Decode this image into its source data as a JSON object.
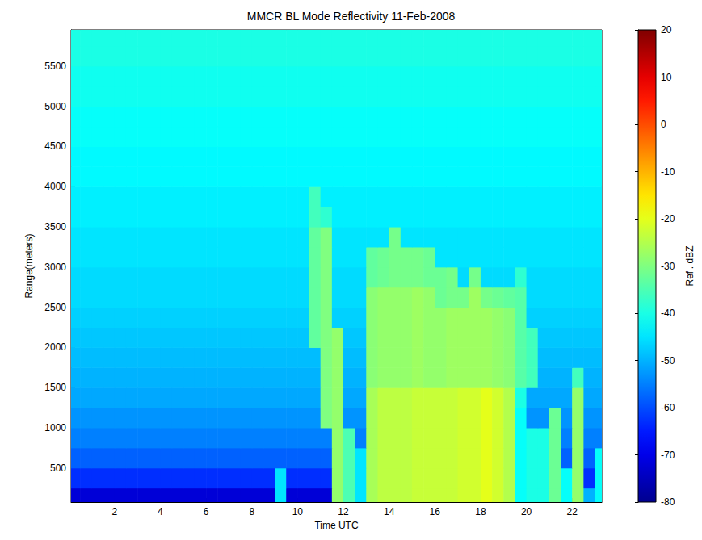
{
  "chart_data": {
    "type": "heatmap",
    "title": "MMCR BL Mode Reflectivity 11-Feb-2008",
    "xlabel": "Time UTC",
    "ylabel": "Range(meters)",
    "xlim": [
      0.1,
      23.3
    ],
    "xticks": [
      2,
      4,
      6,
      8,
      10,
      12,
      14,
      16,
      18,
      20,
      22
    ],
    "ylim": [
      75,
      5950
    ],
    "yticks": [
      500,
      1000,
      1500,
      2000,
      2500,
      3000,
      3500,
      4000,
      4500,
      5000,
      5500
    ],
    "grid": false,
    "cells": {
      "x": [
        0.25,
        0.75,
        1.25,
        1.75,
        2.25,
        2.75,
        3.25,
        3.75,
        4.25,
        4.75,
        5.25,
        5.75,
        6.25,
        6.75,
        7.25,
        7.75,
        8.25,
        8.75,
        9.25,
        9.75,
        10.25,
        10.75,
        11.25,
        11.75,
        12.25,
        12.75,
        13.25,
        13.75,
        14.25,
        14.75,
        15.25,
        15.75,
        16.25,
        16.75,
        17.25,
        17.75,
        18.25,
        18.75,
        19.25,
        19.75,
        20.25,
        20.75,
        21.25,
        21.75,
        22.25,
        22.75,
        23.25
      ],
      "y": [
        125,
        375,
        625,
        875,
        1125,
        1375,
        1625,
        1875,
        2125,
        2375,
        2625,
        2875,
        3125,
        3375,
        3625,
        3875,
        4125,
        4375,
        4625,
        4875,
        5125,
        5375,
        5625,
        5875
      ],
      "values": [
        [
          -72,
          -72,
          -72,
          -72,
          -72,
          -72,
          -72,
          -72,
          -72,
          -72,
          -72,
          -72,
          -72,
          -72,
          -72,
          -72,
          -72,
          -72,
          -45,
          -72,
          -72,
          -72,
          -72,
          -28,
          -35,
          -45,
          -26,
          -24,
          -24,
          -24,
          -23,
          -23,
          -23,
          -23,
          -22,
          -22,
          -20,
          -22,
          -25,
          -42,
          -40,
          -40,
          -32,
          -42,
          -28,
          -50,
          -42
        ],
        [
          -63,
          -63,
          -63,
          -63,
          -63,
          -63,
          -63,
          -63,
          -63,
          -63,
          -63,
          -63,
          -63,
          -63,
          -63,
          -63,
          -63,
          -63,
          -45,
          -63,
          -63,
          -63,
          -63,
          -28,
          -35,
          -45,
          -26,
          -24,
          -24,
          -24,
          -23,
          -23,
          -23,
          -23,
          -22,
          -22,
          -20,
          -22,
          -25,
          -42,
          -40,
          -40,
          -32,
          -42,
          -28,
          -63,
          -42
        ],
        [
          -58,
          -58,
          -58,
          -58,
          -58,
          -58,
          -58,
          -58,
          -58,
          -58,
          -58,
          -58,
          -58,
          -58,
          -58,
          -58,
          -58,
          -58,
          -58,
          -58,
          -58,
          -58,
          -58,
          -28,
          -35,
          -45,
          -26,
          -24,
          -24,
          -24,
          -23,
          -23,
          -23,
          -23,
          -22,
          -22,
          -20,
          -22,
          -25,
          -42,
          -40,
          -40,
          -32,
          -58,
          -28,
          -58,
          -42
        ],
        [
          -55,
          -55,
          -55,
          -55,
          -55,
          -55,
          -55,
          -55,
          -55,
          -55,
          -55,
          -55,
          -55,
          -55,
          -55,
          -55,
          -55,
          -55,
          -55,
          -55,
          -55,
          -55,
          -55,
          -28,
          -35,
          -55,
          -26,
          -24,
          -24,
          -24,
          -23,
          -23,
          -23,
          -23,
          -22,
          -22,
          -20,
          -22,
          -25,
          -42,
          -40,
          -40,
          -32,
          -55,
          -28,
          -55,
          -55
        ],
        [
          -53,
          -53,
          -53,
          -53,
          -53,
          -53,
          -53,
          -53,
          -53,
          -53,
          -53,
          -53,
          -53,
          -53,
          -53,
          -53,
          -53,
          -53,
          -53,
          -53,
          -53,
          -53,
          -30,
          -28,
          -53,
          -53,
          -26,
          -24,
          -24,
          -24,
          -23,
          -23,
          -23,
          -23,
          -22,
          -22,
          -20,
          -22,
          -25,
          -42,
          -53,
          -53,
          -32,
          -53,
          -28,
          -53,
          -53
        ],
        [
          -51,
          -51,
          -51,
          -51,
          -51,
          -51,
          -51,
          -51,
          -51,
          -51,
          -51,
          -51,
          -51,
          -51,
          -51,
          -51,
          -51,
          -51,
          -51,
          -51,
          -51,
          -51,
          -30,
          -28,
          -51,
          -51,
          -26,
          -24,
          -24,
          -24,
          -23,
          -23,
          -23,
          -23,
          -22,
          -22,
          -20,
          -22,
          -25,
          -40,
          -51,
          -51,
          -51,
          -51,
          -28,
          -51,
          -51
        ],
        [
          -50,
          -50,
          -50,
          -50,
          -50,
          -50,
          -50,
          -50,
          -50,
          -50,
          -50,
          -50,
          -50,
          -50,
          -50,
          -50,
          -50,
          -50,
          -50,
          -50,
          -50,
          -50,
          -30,
          -28,
          -50,
          -50,
          -29,
          -28,
          -28,
          -28,
          -27,
          -28,
          -28,
          -27,
          -27,
          -27,
          -27,
          -28,
          -29,
          -34,
          -36,
          -50,
          -50,
          -50,
          -36,
          -50,
          -50
        ],
        [
          -49,
          -49,
          -49,
          -49,
          -49,
          -49,
          -49,
          -49,
          -49,
          -49,
          -49,
          -49,
          -49,
          -49,
          -49,
          -49,
          -49,
          -49,
          -49,
          -49,
          -49,
          -49,
          -30,
          -28,
          -49,
          -49,
          -29,
          -28,
          -28,
          -28,
          -27,
          -28,
          -28,
          -27,
          -27,
          -27,
          -27,
          -28,
          -29,
          -34,
          -36,
          -49,
          -49,
          -49,
          -49,
          -49,
          -49
        ],
        [
          -48,
          -48,
          -48,
          -48,
          -48,
          -48,
          -48,
          -48,
          -48,
          -48,
          -48,
          -48,
          -48,
          -48,
          -48,
          -48,
          -48,
          -48,
          -48,
          -48,
          -48,
          -33,
          -30,
          -28,
          -48,
          -48,
          -29,
          -28,
          -28,
          -28,
          -27,
          -28,
          -28,
          -27,
          -27,
          -27,
          -27,
          -28,
          -29,
          -34,
          -36,
          -48,
          -48,
          -48,
          -48,
          -48,
          -48
        ],
        [
          -47,
          -47,
          -47,
          -47,
          -47,
          -47,
          -47,
          -47,
          -47,
          -47,
          -47,
          -47,
          -47,
          -47,
          -47,
          -47,
          -47,
          -47,
          -47,
          -47,
          -47,
          -33,
          -30,
          -47,
          -47,
          -47,
          -29,
          -28,
          -28,
          -28,
          -27,
          -28,
          -28,
          -27,
          -27,
          -27,
          -27,
          -28,
          -29,
          -34,
          -47,
          -47,
          -47,
          -47,
          -47,
          -47,
          -47
        ],
        [
          -46,
          -46,
          -46,
          -46,
          -46,
          -46,
          -46,
          -46,
          -46,
          -46,
          -46,
          -46,
          -46,
          -46,
          -46,
          -46,
          -46,
          -46,
          -46,
          -46,
          -46,
          -33,
          -30,
          -46,
          -46,
          -46,
          -29,
          -28,
          -28,
          -28,
          -27,
          -28,
          -32,
          -31,
          -31,
          -27,
          -31,
          -32,
          -33,
          -34,
          -46,
          -46,
          -46,
          -46,
          -46,
          -46,
          -46
        ],
        [
          -46,
          -46,
          -46,
          -46,
          -46,
          -46,
          -46,
          -46,
          -46,
          -46,
          -46,
          -46,
          -46,
          -46,
          -46,
          -46,
          -46,
          -46,
          -46,
          -46,
          -46,
          -33,
          -30,
          -46,
          -46,
          -46,
          -33,
          -32,
          -31,
          -31,
          -31,
          -32,
          -32,
          -31,
          -46,
          -31,
          -46,
          -46,
          -46,
          -38,
          -46,
          -46,
          -46,
          -46,
          -46,
          -46,
          -46
        ],
        [
          -45,
          -45,
          -45,
          -45,
          -45,
          -45,
          -45,
          -45,
          -45,
          -45,
          -45,
          -45,
          -45,
          -45,
          -45,
          -45,
          -45,
          -45,
          -45,
          -45,
          -45,
          -33,
          -30,
          -45,
          -45,
          -45,
          -33,
          -32,
          -31,
          -31,
          -31,
          -32,
          -45,
          -45,
          -45,
          -45,
          -45,
          -45,
          -45,
          -45,
          -45,
          -45,
          -45,
          -45,
          -45,
          -45,
          -45
        ],
        [
          -45,
          -45,
          -45,
          -45,
          -45,
          -45,
          -45,
          -45,
          -45,
          -45,
          -45,
          -45,
          -45,
          -45,
          -45,
          -45,
          -45,
          -45,
          -45,
          -45,
          -45,
          -33,
          -30,
          -45,
          -45,
          -45,
          -45,
          -45,
          -31,
          -45,
          -45,
          -45,
          -45,
          -45,
          -45,
          -45,
          -45,
          -45,
          -45,
          -45,
          -45,
          -45,
          -45,
          -45,
          -45,
          -45,
          -45
        ],
        [
          -44,
          -44,
          -44,
          -44,
          -44,
          -44,
          -44,
          -44,
          -44,
          -44,
          -44,
          -44,
          -44,
          -44,
          -44,
          -44,
          -44,
          -44,
          -44,
          -44,
          -44,
          -36,
          -38,
          -44,
          -44,
          -44,
          -44,
          -44,
          -44,
          -44,
          -44,
          -44,
          -44,
          -44,
          -44,
          -44,
          -44,
          -44,
          -44,
          -44,
          -44,
          -44,
          -44,
          -44,
          -44,
          -44,
          -44
        ],
        [
          -44,
          -44,
          -44,
          -44,
          -44,
          -44,
          -44,
          -44,
          -44,
          -44,
          -44,
          -44,
          -44,
          -44,
          -44,
          -44,
          -44,
          -44,
          -44,
          -44,
          -44,
          -36,
          -44,
          -44,
          -44,
          -44,
          -44,
          -44,
          -44,
          -44,
          -44,
          -44,
          -44,
          -44,
          -44,
          -44,
          -44,
          -44,
          -44,
          -44,
          -44,
          -44,
          -44,
          -44,
          -44,
          -44,
          -44
        ],
        [
          -43,
          -43,
          -43,
          -43,
          -43,
          -43,
          -43,
          -43,
          -43,
          -43,
          -43,
          -43,
          -43,
          -43,
          -43,
          -43,
          -43,
          -43,
          -43,
          -43,
          -43,
          -43,
          -43,
          -43,
          -43,
          -43,
          -43,
          -43,
          -43,
          -43,
          -43,
          -43,
          -43,
          -43,
          -43,
          -43,
          -43,
          -43,
          -43,
          -43,
          -43,
          -43,
          -43,
          -43,
          -43,
          -43,
          -43
        ],
        [
          -43,
          -43,
          -43,
          -43,
          -43,
          -43,
          -43,
          -43,
          -43,
          -43,
          -43,
          -43,
          -43,
          -43,
          -43,
          -43,
          -43,
          -43,
          -43,
          -43,
          -43,
          -43,
          -43,
          -43,
          -43,
          -43,
          -43,
          -43,
          -43,
          -43,
          -43,
          -43,
          -43,
          -43,
          -43,
          -43,
          -43,
          -43,
          -43,
          -43,
          -43,
          -43,
          -43,
          -43,
          -43,
          -43,
          -43
        ],
        [
          -42,
          -42,
          -42,
          -42,
          -42,
          -42,
          -42,
          -42,
          -42,
          -42,
          -42,
          -42,
          -42,
          -42,
          -42,
          -42,
          -42,
          -42,
          -42,
          -42,
          -42,
          -42,
          -42,
          -42,
          -42,
          -42,
          -42,
          -42,
          -42,
          -42,
          -42,
          -42,
          -42,
          -42,
          -42,
          -42,
          -42,
          -42,
          -42,
          -42,
          -42,
          -42,
          -42,
          -42,
          -42,
          -42,
          -42
        ],
        [
          -42,
          -42,
          -42,
          -42,
          -42,
          -42,
          -42,
          -42,
          -42,
          -42,
          -42,
          -42,
          -42,
          -42,
          -42,
          -42,
          -42,
          -42,
          -42,
          -42,
          -42,
          -42,
          -42,
          -42,
          -42,
          -42,
          -42,
          -42,
          -42,
          -42,
          -42,
          -42,
          -42,
          -42,
          -42,
          -42,
          -42,
          -42,
          -42,
          -42,
          -42,
          -42,
          -42,
          -42,
          -42,
          -42,
          -42
        ],
        [
          -41,
          -41,
          -41,
          -41,
          -41,
          -41,
          -41,
          -41,
          -41,
          -41,
          -41,
          -41,
          -41,
          -41,
          -41,
          -41,
          -41,
          -41,
          -41,
          -41,
          -41,
          -41,
          -41,
          -41,
          -41,
          -41,
          -41,
          -41,
          -41,
          -41,
          -41,
          -41,
          -41,
          -41,
          -41,
          -41,
          -41,
          -41,
          -41,
          -41,
          -41,
          -41,
          -41,
          -41,
          -41,
          -41,
          -41
        ],
        [
          -41,
          -41,
          -41,
          -41,
          -41,
          -41,
          -41,
          -41,
          -41,
          -41,
          -41,
          -41,
          -41,
          -41,
          -41,
          -41,
          -41,
          -41,
          -41,
          -41,
          -41,
          -41,
          -41,
          -41,
          -41,
          -41,
          -41,
          -41,
          -41,
          -41,
          -41,
          -41,
          -41,
          -41,
          -41,
          -41,
          -41,
          -41,
          -41,
          -41,
          -41,
          -41,
          -41,
          -41,
          -41,
          -41,
          -41
        ],
        [
          -40,
          -40,
          -40,
          -40,
          -40,
          -40,
          -40,
          -40,
          -40,
          -40,
          -40,
          -40,
          -40,
          -40,
          -40,
          -40,
          -40,
          -40,
          -40,
          -40,
          -40,
          -40,
          -40,
          -40,
          -40,
          -40,
          -40,
          -40,
          -40,
          -40,
          -40,
          -40,
          -40,
          -40,
          -40,
          -40,
          -40,
          -40,
          -40,
          -40,
          -40,
          -40,
          -40,
          -40,
          -40,
          -40,
          -40
        ],
        [
          -40,
          -40,
          -40,
          -40,
          -40,
          -40,
          -40,
          -40,
          -40,
          -40,
          -40,
          -40,
          -40,
          -40,
          -40,
          -40,
          -40,
          -40,
          -40,
          -40,
          -40,
          -40,
          -40,
          -40,
          -40,
          -40,
          -40,
          -40,
          -40,
          -40,
          -40,
          -40,
          -40,
          -40,
          -40,
          -40,
          -40,
          -40,
          -40,
          -40,
          -40,
          -40,
          -40,
          -40,
          -40,
          -40,
          -40
        ]
      ]
    },
    "colorbar": {
      "label": "Refl. dBZ",
      "range": [
        -80,
        20
      ],
      "ticks": [
        -80,
        -70,
        -60,
        -50,
        -40,
        -30,
        -20,
        -10,
        0,
        10,
        20
      ]
    }
  }
}
